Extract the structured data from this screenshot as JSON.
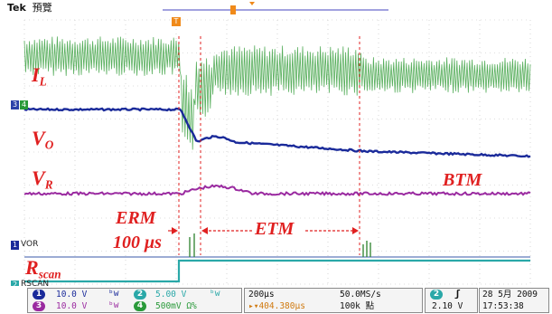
{
  "header": {
    "brand": "Tek",
    "mode": "預覽",
    "trigger_marker": "T"
  },
  "traces": [
    {
      "id": "1",
      "name": "VOR",
      "color": "#1a2a9a"
    },
    {
      "id": "2",
      "name": "RSCAN",
      "color": "#2aa8a8"
    },
    {
      "id": "3",
      "name": "",
      "color": "#2a40a8"
    },
    {
      "id": "4",
      "name": "",
      "color": "#9a2aa0"
    }
  ],
  "left_markers": {
    "ch3": "3",
    "ch4": "4",
    "ch1": "1",
    "ch1_name": "VOR",
    "ch2": "2",
    "ch2_name": "RSCAN"
  },
  "overlay_labels": {
    "il_main": "I",
    "il_sub": "L",
    "vo_main": "V",
    "vo_sub": "O",
    "vr_main": "V",
    "vr_sub": "R",
    "btm": "BTM",
    "erm": "ERM",
    "erm_time": "100 μs",
    "etm": "ETM",
    "rscan_main": "R",
    "rscan_sub": "scan"
  },
  "status_bar": {
    "ch1_num": "1",
    "ch1_scale": "10.0 V",
    "ch1_bw": "ᵇw",
    "ch2_num": "2",
    "ch2_scale": "5.00 V",
    "ch2_bw": "ᵇw",
    "ch3_num": "3",
    "ch3_scale": "10.0 V",
    "ch3_bw": "ᵇw",
    "ch4_num": "4",
    "ch4_scale": "500mV Ω%",
    "timebase": "200μs",
    "sample_rate": "50.0MS/s",
    "trigger_pos": "▸▾404.380μs",
    "record_length": "100k 點",
    "trig_channel": "2",
    "trig_slope": "ʃ",
    "trig_level": "2.10 V",
    "date": "28 5月 2009",
    "time": "17:53:38"
  }
}
